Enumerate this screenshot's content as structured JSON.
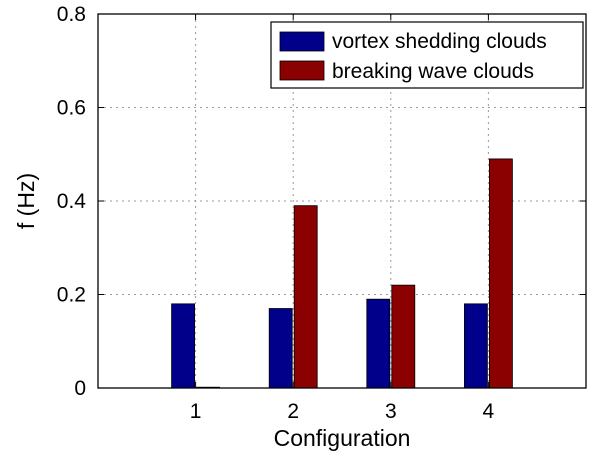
{
  "chart_data": {
    "type": "bar",
    "title": "",
    "xlabel": "Configuration",
    "ylabel": "f (Hz)",
    "categories": [
      "1",
      "2",
      "3",
      "4"
    ],
    "ylim": [
      0,
      0.8
    ],
    "yticks": [
      "0",
      "0.2",
      "0.4",
      "0.6",
      "0.8"
    ],
    "grid": true,
    "legend_position": "top-right",
    "series": [
      {
        "name": "vortex shedding clouds",
        "color": "#00008b",
        "values": [
          0.18,
          0.17,
          0.19,
          0.18
        ]
      },
      {
        "name": "breaking wave clouds",
        "color": "#8b0000",
        "values": [
          0.0,
          0.39,
          0.22,
          0.49
        ]
      }
    ]
  }
}
